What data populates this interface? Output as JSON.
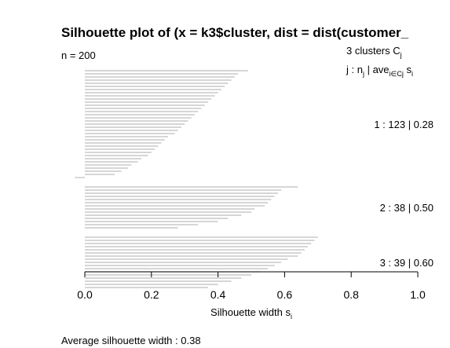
{
  "chart_data": {
    "type": "bar",
    "orientation": "horizontal",
    "title": "Silhouette plot of (x = k3$cluster, dist = dist(customer_",
    "n_label": "n = 200",
    "legend": {
      "header_1_a": "3  clusters  C",
      "header_1_sub": "j",
      "header_2_a": "j :  n",
      "header_2_b": "j",
      "header_2_c": " | ave",
      "header_2_d": "i∈Cj",
      "header_2_e": "  s",
      "header_2_f": "i"
    },
    "clusters": [
      {
        "label": "1 :   123  |  0.28",
        "j": 1,
        "n": 123,
        "avg_width": 0.28,
        "values": [
          0.49,
          0.46,
          0.45,
          0.44,
          0.43,
          0.42,
          0.41,
          0.4,
          0.39,
          0.38,
          0.37,
          0.36,
          0.35,
          0.34,
          0.33,
          0.32,
          0.31,
          0.3,
          0.29,
          0.28,
          0.27,
          0.25,
          0.24,
          0.23,
          0.22,
          0.21,
          0.2,
          0.19,
          0.17,
          0.16,
          0.14,
          0.13,
          0.11,
          0.09,
          -0.03
        ]
      },
      {
        "label": "2 :   38  |  0.50",
        "j": 2,
        "n": 38,
        "avg_width": 0.5,
        "values": [
          0.64,
          0.59,
          0.58,
          0.57,
          0.56,
          0.55,
          0.54,
          0.51,
          0.5,
          0.47,
          0.43,
          0.4,
          0.34,
          0.28
        ]
      },
      {
        "label": "3 :   39  |  0.60",
        "j": 3,
        "n": 39,
        "avg_width": 0.6,
        "values": [
          0.7,
          0.69,
          0.68,
          0.67,
          0.66,
          0.65,
          0.64,
          0.61,
          0.59,
          0.57,
          0.55,
          0.53,
          0.5,
          0.47,
          0.44,
          0.4,
          0.37
        ]
      }
    ],
    "x_ticks": [
      "0.0",
      "0.2",
      "0.4",
      "0.6",
      "0.8",
      "1.0"
    ],
    "xlim": [
      0,
      1
    ],
    "xlabel": "Silhouette width s",
    "xlabel_sub": "i",
    "average_label": "Average silhouette width :  0.38",
    "bar_color": "#bebebe",
    "axis_color": "#000000"
  }
}
